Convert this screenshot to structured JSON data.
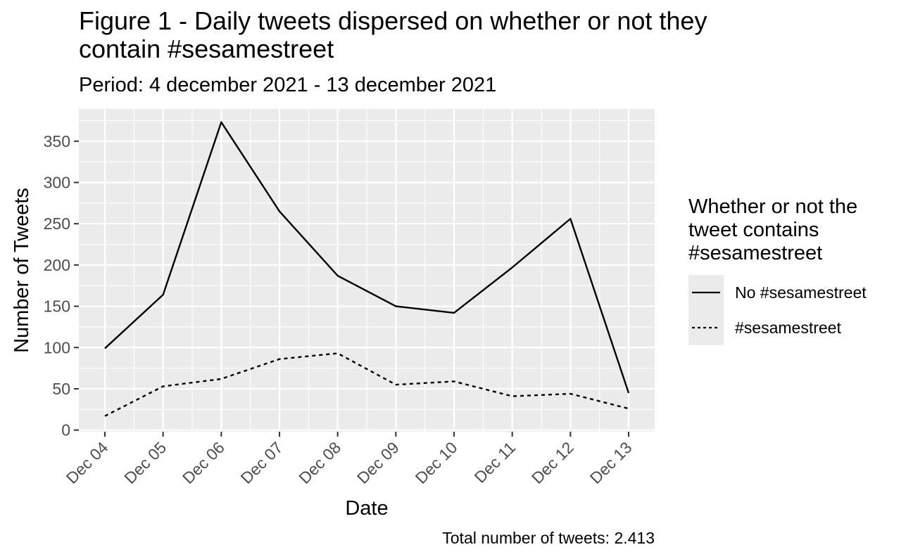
{
  "chart_data": {
    "type": "line",
    "title_lines": [
      "Figure 1 - Daily tweets dispersed on whether or not they",
      "contain #sesamestreet"
    ],
    "subtitle": "Period: 4 december 2021 - 13 december 2021",
    "caption": "Total number of tweets: 2.413",
    "xlabel": "Date",
    "ylabel": "Number of Tweets",
    "categories": [
      "Dec 04",
      "Dec 05",
      "Dec 06",
      "Dec 07",
      "Dec 08",
      "Dec 09",
      "Dec 10",
      "Dec 11",
      "Dec 12",
      "Dec 13"
    ],
    "yticks": [
      0,
      50,
      100,
      150,
      200,
      250,
      300,
      350
    ],
    "ylim": [
      -2,
      389
    ],
    "grid": true,
    "legend": {
      "title_lines": [
        "Whether or not the",
        "tweet contains",
        "#sesamestreet"
      ],
      "position": "right"
    },
    "series": [
      {
        "name": "No #sesamestreet",
        "style": "solid",
        "values": [
          99,
          164,
          373,
          265,
          187,
          150,
          142,
          197,
          256,
          45
        ]
      },
      {
        "name": "#sesamestreet",
        "style": "dashed",
        "values": [
          17,
          53,
          62,
          86,
          93,
          55,
          59,
          41,
          44,
          26
        ]
      }
    ],
    "colors": {
      "panel": "#ebebeb",
      "grid": "#ffffff",
      "line": "#000000",
      "tick_text": "#4d4d4d",
      "tick": "#333333"
    }
  }
}
